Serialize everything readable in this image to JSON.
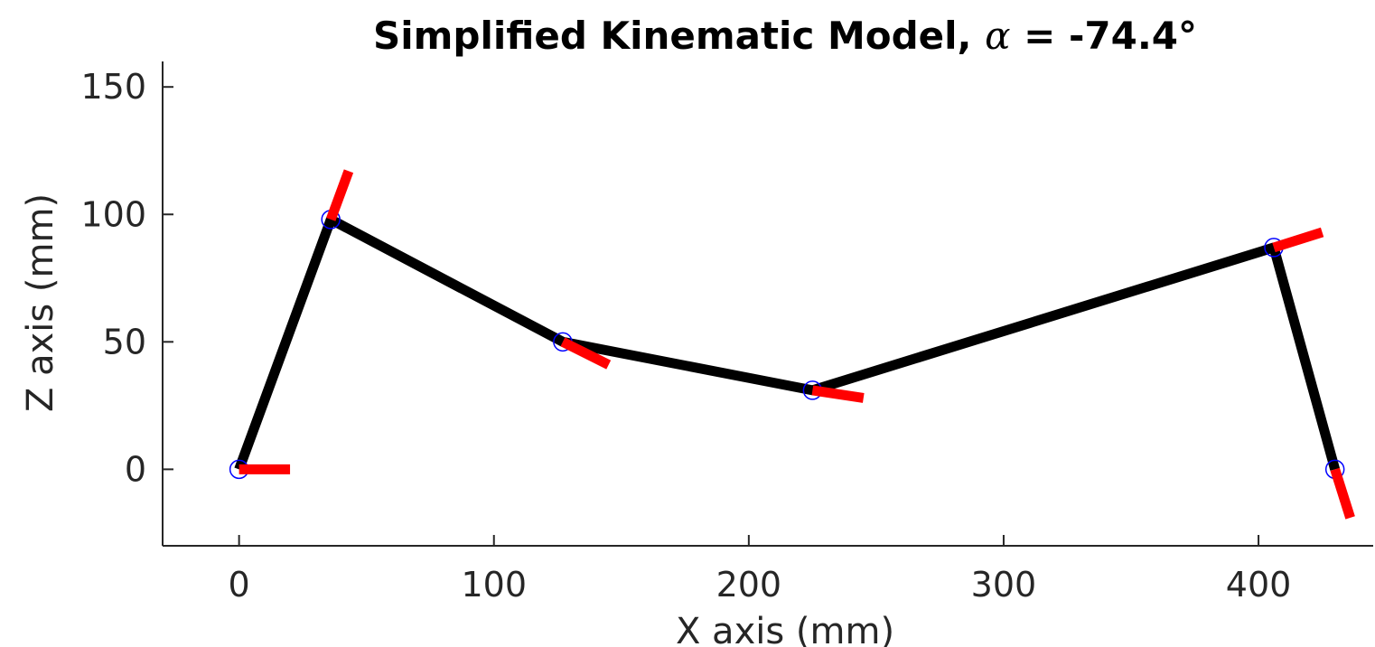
{
  "chart_data": {
    "type": "line",
    "title_prefix": "Simplified Kinematic Model, ",
    "title_symbol": "α",
    "title_suffix": " = -74.4°",
    "xlabel": "X axis (mm)",
    "ylabel": "Z axis (mm)",
    "xlim": [
      -30,
      445
    ],
    "ylim": [
      -30,
      160
    ],
    "xticks": [
      0,
      100,
      200,
      300,
      400
    ],
    "yticks": [
      0,
      50,
      100,
      150
    ],
    "grid": false,
    "series": [
      {
        "style": "links",
        "color": "#000000",
        "points": [
          {
            "x": 0,
            "y": 0
          },
          {
            "x": 36,
            "y": 98
          },
          {
            "x": 127,
            "y": 50
          },
          {
            "x": 225,
            "y": 31
          },
          {
            "x": 406,
            "y": 87
          },
          {
            "x": 430,
            "y": 0
          }
        ]
      },
      {
        "style": "joint-markers",
        "color": "#0000ff",
        "points": [
          {
            "x": 0,
            "y": 0
          },
          {
            "x": 36,
            "y": 98
          },
          {
            "x": 127,
            "y": 50
          },
          {
            "x": 225,
            "y": 31
          },
          {
            "x": 406,
            "y": 87
          },
          {
            "x": 430,
            "y": 0
          }
        ]
      },
      {
        "style": "orientation-segments",
        "color": "#ff0000",
        "segments": [
          {
            "x1": 0,
            "y1": 0,
            "x2": 20,
            "y2": 0
          },
          {
            "x1": 36,
            "y1": 98,
            "x2": 43,
            "y2": 117
          },
          {
            "x1": 127,
            "y1": 50,
            "x2": 145,
            "y2": 41
          },
          {
            "x1": 225,
            "y1": 31,
            "x2": 245,
            "y2": 28
          },
          {
            "x1": 406,
            "y1": 87,
            "x2": 425,
            "y2": 93
          },
          {
            "x1": 430,
            "y1": 0,
            "x2": 436,
            "y2": -19
          }
        ]
      }
    ]
  }
}
